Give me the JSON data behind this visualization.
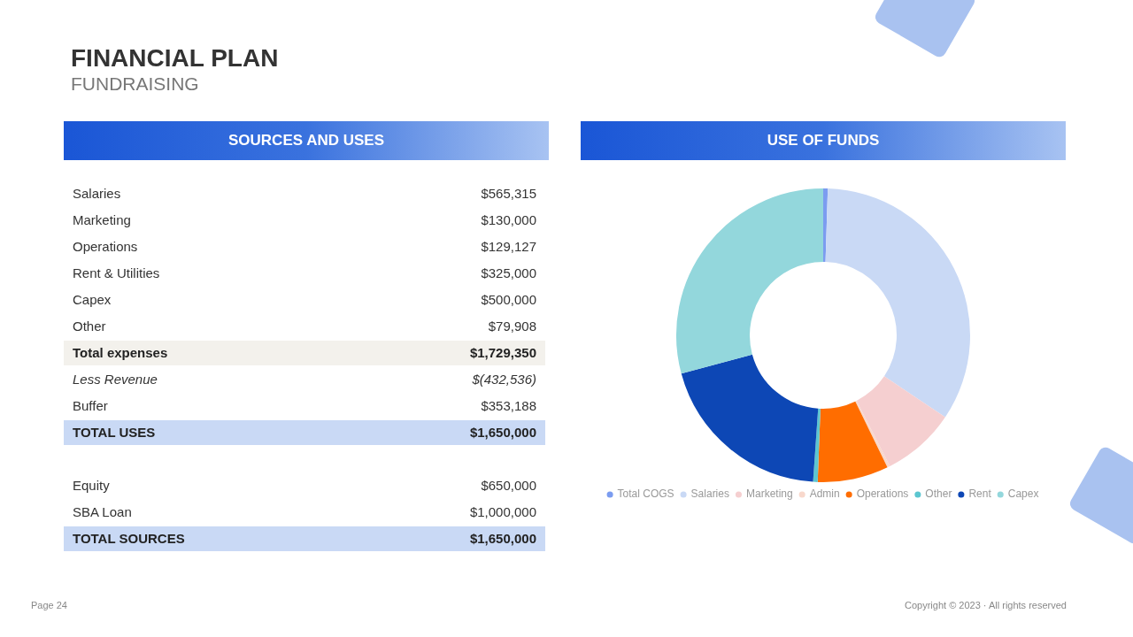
{
  "chart_data": [
    {
      "type": "other",
      "title": "SOURCES AND USES",
      "categories": [
        "Salaries",
        "Marketing",
        "Operations",
        "Rent & Utilities",
        "Capex",
        "Other",
        "Total expenses",
        "Less Revenue",
        "Buffer",
        "TOTAL USES",
        null,
        "Equity",
        "SBA Loan",
        "TOTAL SOURCES"
      ],
      "value_labels": [
        "$565,315",
        "$130,000",
        "$129,127",
        "$325,000",
        "$500,000",
        "$79,908",
        "$1,729,350",
        "$(432,536)",
        "$353,188",
        "$1,650,000",
        null,
        "$650,000",
        "$1,000,000",
        "$1,650,000"
      ],
      "annotations": [
        "FINANCIAL PLAN",
        "FUNDRAISING",
        "Page 24",
        "Copyright © 2023 · All rights reserved"
      ]
    },
    {
      "type": "donut",
      "title": "USE OF FUNDS",
      "categories": [
        "Total COGS",
        "Salaries",
        "Marketing",
        "Admin",
        "Operations",
        "Other",
        "Rent",
        "Capex"
      ],
      "values": [
        0.5,
        33.9,
        8.1,
        0.3,
        7.8,
        0.5,
        19.7,
        29.2
      ],
      "colors": [
        "#7b9cf0",
        "#c9d9f5",
        "#f5cfd0",
        "#f8d8cc",
        "#ff6d00",
        "#5cc6d0",
        "#0d47b5",
        "#93d7dc"
      ],
      "legend": "bottom"
    }
  ]
}
